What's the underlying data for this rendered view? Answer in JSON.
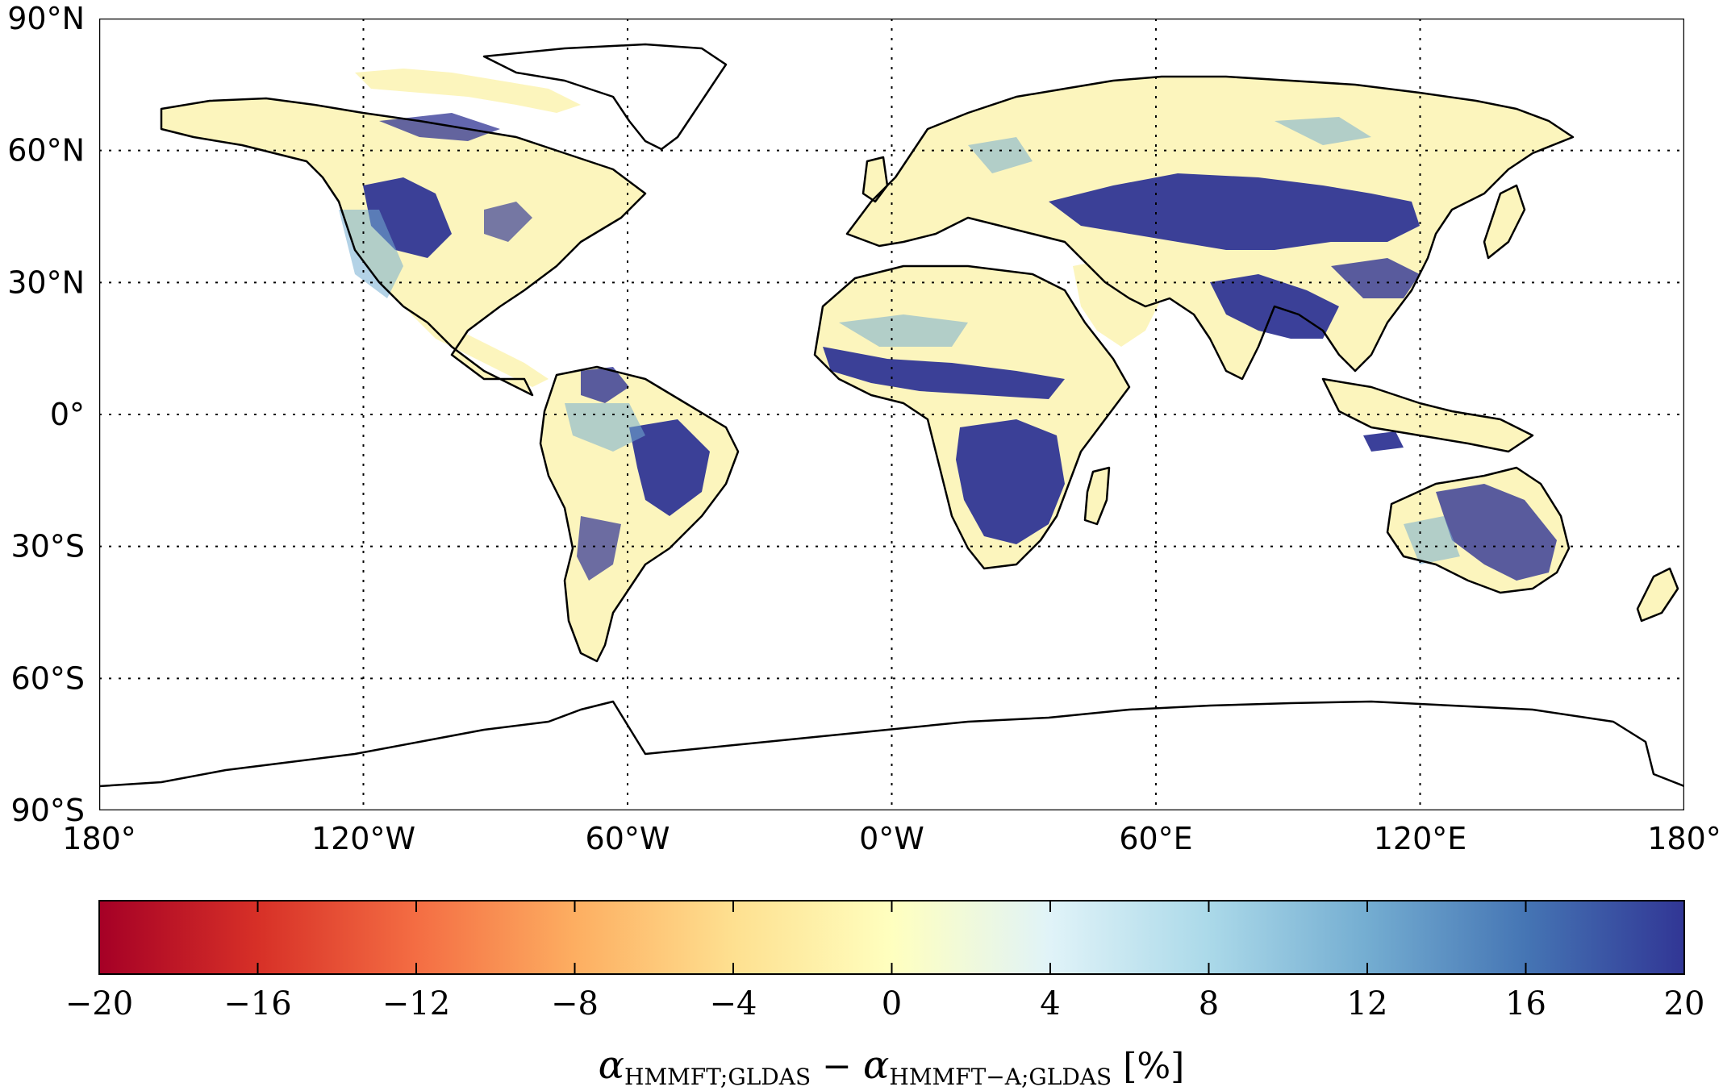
{
  "map": {
    "type": "global-heatmap",
    "projection": "equirectangular",
    "lon_range": [
      -180,
      180
    ],
    "lat_range": [
      -90,
      90
    ],
    "grid": true,
    "lat_ticks": [
      {
        "value": 90,
        "label": "90°N"
      },
      {
        "value": 60,
        "label": "60°N"
      },
      {
        "value": 30,
        "label": "30°N"
      },
      {
        "value": 0,
        "label": "0°"
      },
      {
        "value": -30,
        "label": "30°S"
      },
      {
        "value": -60,
        "label": "60°S"
      },
      {
        "value": -90,
        "label": "90°S"
      }
    ],
    "lon_ticks": [
      {
        "value": -180,
        "label": "180°"
      },
      {
        "value": -120,
        "label": "120°W"
      },
      {
        "value": -60,
        "label": "60°W"
      },
      {
        "value": 0,
        "label": "0°W"
      },
      {
        "value": 60,
        "label": "60°E"
      },
      {
        "value": 120,
        "label": "120°E"
      },
      {
        "value": 180,
        "label": "180°"
      }
    ],
    "regions": [
      {
        "name": "North America",
        "dominant": "mixed",
        "value_range": [
          -4,
          20
        ]
      },
      {
        "name": "South America",
        "dominant": "mixed",
        "value_range": [
          -4,
          20
        ]
      },
      {
        "name": "Africa",
        "dominant": "high",
        "value_range": [
          -2,
          20
        ]
      },
      {
        "name": "Eurasia",
        "dominant": "mixed",
        "value_range": [
          -4,
          20
        ]
      },
      {
        "name": "Australia",
        "dominant": "high",
        "value_range": [
          -2,
          20
        ]
      }
    ]
  },
  "colorbar": {
    "colormap": "RdYlBu",
    "vmin": -20,
    "vmax": 20,
    "ticks": [
      -20,
      -16,
      -12,
      -8,
      -4,
      0,
      4,
      8,
      12,
      16,
      20
    ],
    "tick_labels": [
      "−20",
      "−16",
      "−12",
      "−8",
      "−4",
      "0",
      "4",
      "8",
      "12",
      "16",
      "20"
    ],
    "title": {
      "alpha1": "α",
      "sub1": "HMMFT;GLDAS",
      "minus": " − ",
      "alpha2": "α",
      "sub2": "HMMFT−A;GLDAS",
      "unit": " [%]"
    },
    "colors": [
      "#a50026",
      "#d73027",
      "#f46d43",
      "#fdae61",
      "#fee090",
      "#ffffbf",
      "#e0f3f8",
      "#abd9e9",
      "#74add1",
      "#4575b4",
      "#313695"
    ]
  },
  "chart_data": {
    "type": "heatmap",
    "title": "",
    "xlabel": "",
    "ylabel": "",
    "xlim": [
      -180,
      180
    ],
    "ylim": [
      -90,
      90
    ],
    "colorbar_label": "αHMMFT;GLDAS − αHMMFT−A;GLDAS [%]",
    "color_range": [
      -20,
      20
    ]
  }
}
